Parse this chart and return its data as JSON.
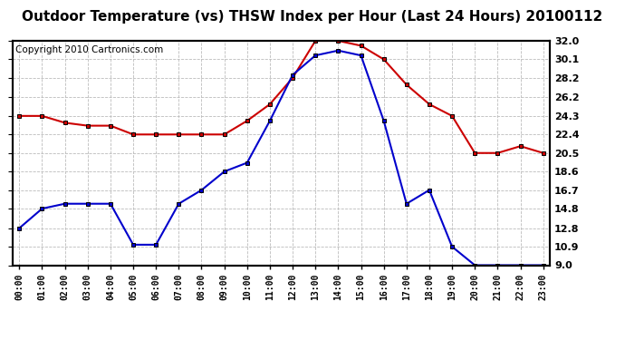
{
  "title": "Outdoor Temperature (vs) THSW Index per Hour (Last 24 Hours) 20100112",
  "copyright": "Copyright 2010 Cartronics.com",
  "hours": [
    "00:00",
    "01:00",
    "02:00",
    "03:00",
    "04:00",
    "05:00",
    "06:00",
    "07:00",
    "08:00",
    "09:00",
    "10:00",
    "11:00",
    "12:00",
    "13:00",
    "14:00",
    "15:00",
    "16:00",
    "17:00",
    "18:00",
    "19:00",
    "20:00",
    "21:00",
    "22:00",
    "23:00"
  ],
  "temp_blue": [
    12.8,
    14.8,
    15.3,
    15.3,
    15.3,
    11.1,
    11.1,
    15.3,
    16.7,
    18.6,
    19.5,
    23.8,
    28.5,
    30.5,
    31.0,
    30.5,
    23.8,
    15.3,
    16.7,
    10.9,
    9.0,
    9.0,
    9.0,
    9.0
  ],
  "temp_red": [
    24.3,
    24.3,
    23.6,
    23.3,
    23.3,
    22.4,
    22.4,
    22.4,
    22.4,
    22.4,
    23.8,
    25.5,
    28.2,
    32.0,
    32.0,
    31.5,
    30.1,
    27.5,
    25.5,
    24.3,
    20.5,
    20.5,
    21.2,
    20.5
  ],
  "ylim_min": 9.0,
  "ylim_max": 32.0,
  "yticks": [
    9.0,
    10.9,
    12.8,
    14.8,
    16.7,
    18.6,
    20.5,
    22.4,
    24.3,
    26.2,
    28.2,
    30.1,
    32.0
  ],
  "bg_color": "#ffffff",
  "plot_bg": "#ffffff",
  "grid_color": "#aaaaaa",
  "line_blue": "#0000cc",
  "line_red": "#cc0000",
  "title_fontsize": 11,
  "copyright_fontsize": 7.5
}
